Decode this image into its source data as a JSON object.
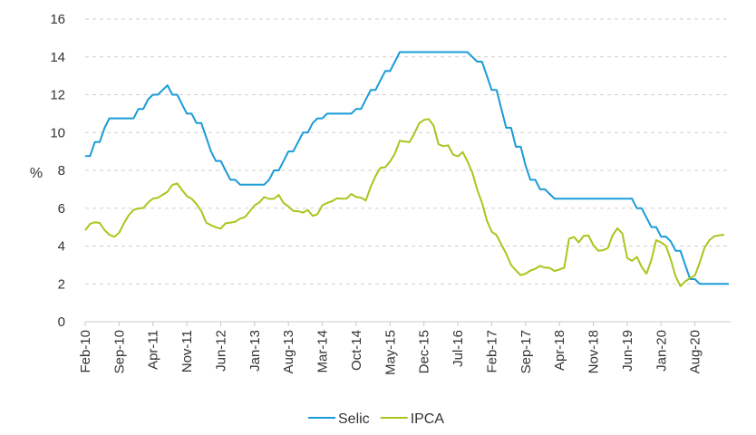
{
  "chart_data": {
    "type": "line",
    "ylabel": "%",
    "ylim": [
      0,
      16
    ],
    "yticks": [
      0,
      2,
      4,
      6,
      8,
      10,
      12,
      14,
      16
    ],
    "grid": "horizontal dashed",
    "legend_position": "bottom-center",
    "x_ticks": [
      "Feb-10",
      "Sep-10",
      "Apr-11",
      "Nov-11",
      "Jun-12",
      "Jan-13",
      "Aug-13",
      "Mar-14",
      "Oct-14",
      "May-15",
      "Dec-15",
      "Jul-16",
      "Feb-17",
      "Sep-17",
      "Apr-18",
      "Nov-18",
      "Jun-19",
      "Jan-20",
      "Aug-20"
    ],
    "series": [
      {
        "name": "Selic",
        "color": "#1a9bd7",
        "points": [
          [
            "Feb-10",
            8.75
          ],
          [
            "Mar-10",
            8.75
          ],
          [
            "Apr-10",
            9.5
          ],
          [
            "May-10",
            9.5
          ],
          [
            "Jun-10",
            10.25
          ],
          [
            "Jul-10",
            10.75
          ],
          [
            "Aug-10",
            10.75
          ],
          [
            "Sep-10",
            10.75
          ],
          [
            "Oct-10",
            10.75
          ],
          [
            "Nov-10",
            10.75
          ],
          [
            "Dec-10",
            10.75
          ],
          [
            "Jan-11",
            11.25
          ],
          [
            "Feb-11",
            11.25
          ],
          [
            "Mar-11",
            11.75
          ],
          [
            "Apr-11",
            12.0
          ],
          [
            "May-11",
            12.0
          ],
          [
            "Jun-11",
            12.25
          ],
          [
            "Jul-11",
            12.5
          ],
          [
            "Aug-11",
            12.0
          ],
          [
            "Sep-11",
            12.0
          ],
          [
            "Oct-11",
            11.5
          ],
          [
            "Nov-11",
            11.0
          ],
          [
            "Dec-11",
            11.0
          ],
          [
            "Jan-12",
            10.5
          ],
          [
            "Feb-12",
            10.5
          ],
          [
            "Mar-12",
            9.75
          ],
          [
            "Apr-12",
            9.0
          ],
          [
            "May-12",
            8.5
          ],
          [
            "Jun-12",
            8.5
          ],
          [
            "Jul-12",
            8.0
          ],
          [
            "Aug-12",
            7.5
          ],
          [
            "Sep-12",
            7.5
          ],
          [
            "Oct-12",
            7.25
          ],
          [
            "Nov-12",
            7.25
          ],
          [
            "Dec-12",
            7.25
          ],
          [
            "Jan-13",
            7.25
          ],
          [
            "Feb-13",
            7.25
          ],
          [
            "Mar-13",
            7.25
          ],
          [
            "Apr-13",
            7.5
          ],
          [
            "May-13",
            8.0
          ],
          [
            "Jun-13",
            8.0
          ],
          [
            "Jul-13",
            8.5
          ],
          [
            "Aug-13",
            9.0
          ],
          [
            "Sep-13",
            9.0
          ],
          [
            "Oct-13",
            9.5
          ],
          [
            "Nov-13",
            10.0
          ],
          [
            "Dec-13",
            10.0
          ],
          [
            "Jan-14",
            10.5
          ],
          [
            "Feb-14",
            10.75
          ],
          [
            "Mar-14",
            10.75
          ],
          [
            "Apr-14",
            11.0
          ],
          [
            "May-14",
            11.0
          ],
          [
            "Jun-14",
            11.0
          ],
          [
            "Jul-14",
            11.0
          ],
          [
            "Aug-14",
            11.0
          ],
          [
            "Sep-14",
            11.0
          ],
          [
            "Oct-14",
            11.25
          ],
          [
            "Nov-14",
            11.25
          ],
          [
            "Dec-14",
            11.75
          ],
          [
            "Jan-15",
            12.25
          ],
          [
            "Feb-15",
            12.25
          ],
          [
            "Mar-15",
            12.75
          ],
          [
            "Apr-15",
            13.25
          ],
          [
            "May-15",
            13.25
          ],
          [
            "Jun-15",
            13.75
          ],
          [
            "Jul-15",
            14.25
          ],
          [
            "Aug-15",
            14.25
          ],
          [
            "Sep-15",
            14.25
          ],
          [
            "Oct-15",
            14.25
          ],
          [
            "Nov-15",
            14.25
          ],
          [
            "Dec-15",
            14.25
          ],
          [
            "Jan-16",
            14.25
          ],
          [
            "Feb-16",
            14.25
          ],
          [
            "Mar-16",
            14.25
          ],
          [
            "Apr-16",
            14.25
          ],
          [
            "May-16",
            14.25
          ],
          [
            "Jun-16",
            14.25
          ],
          [
            "Jul-16",
            14.25
          ],
          [
            "Aug-16",
            14.25
          ],
          [
            "Sep-16",
            14.25
          ],
          [
            "Oct-16",
            14.0
          ],
          [
            "Nov-16",
            13.75
          ],
          [
            "Dec-16",
            13.75
          ],
          [
            "Jan-17",
            13.0
          ],
          [
            "Feb-17",
            12.25
          ],
          [
            "Mar-17",
            12.25
          ],
          [
            "Apr-17",
            11.25
          ],
          [
            "May-17",
            10.25
          ],
          [
            "Jun-17",
            10.25
          ],
          [
            "Jul-17",
            9.25
          ],
          [
            "Aug-17",
            9.25
          ],
          [
            "Sep-17",
            8.25
          ],
          [
            "Oct-17",
            7.5
          ],
          [
            "Nov-17",
            7.5
          ],
          [
            "Dec-17",
            7.0
          ],
          [
            "Jan-18",
            7.0
          ],
          [
            "Feb-18",
            6.75
          ],
          [
            "Mar-18",
            6.5
          ],
          [
            "Apr-18",
            6.5
          ],
          [
            "May-18",
            6.5
          ],
          [
            "Jun-18",
            6.5
          ],
          [
            "Jul-18",
            6.5
          ],
          [
            "Aug-18",
            6.5
          ],
          [
            "Sep-18",
            6.5
          ],
          [
            "Oct-18",
            6.5
          ],
          [
            "Nov-18",
            6.5
          ],
          [
            "Dec-18",
            6.5
          ],
          [
            "Jan-19",
            6.5
          ],
          [
            "Feb-19",
            6.5
          ],
          [
            "Mar-19",
            6.5
          ],
          [
            "Apr-19",
            6.5
          ],
          [
            "May-19",
            6.5
          ],
          [
            "Jun-19",
            6.5
          ],
          [
            "Jul-19",
            6.5
          ],
          [
            "Aug-19",
            6.0
          ],
          [
            "Sep-19",
            6.0
          ],
          [
            "Oct-19",
            5.5
          ],
          [
            "Nov-19",
            5.0
          ],
          [
            "Dec-19",
            5.0
          ],
          [
            "Jan-20",
            4.5
          ],
          [
            "Feb-20",
            4.5
          ],
          [
            "Mar-20",
            4.25
          ],
          [
            "Apr-20",
            3.75
          ],
          [
            "May-20",
            3.75
          ],
          [
            "Jun-20",
            3.0
          ],
          [
            "Jul-20",
            2.25
          ],
          [
            "Aug-20",
            2.25
          ],
          [
            "Sep-20",
            2.0
          ],
          [
            "Oct-20",
            2.0
          ],
          [
            "Nov-20",
            2.0
          ],
          [
            "Dec-20",
            2.0
          ],
          [
            "Jan-21",
            2.0
          ],
          [
            "Feb-21",
            2.0
          ],
          [
            "Mar-21",
            2.0
          ]
        ]
      },
      {
        "name": "IPCA",
        "color": "#aac51c",
        "points": [
          [
            "Feb-10",
            4.83
          ],
          [
            "Mar-10",
            5.17
          ],
          [
            "Apr-10",
            5.26
          ],
          [
            "May-10",
            5.22
          ],
          [
            "Jun-10",
            4.84
          ],
          [
            "Jul-10",
            4.6
          ],
          [
            "Aug-10",
            4.49
          ],
          [
            "Sep-10",
            4.7
          ],
          [
            "Oct-10",
            5.2
          ],
          [
            "Nov-10",
            5.63
          ],
          [
            "Dec-10",
            5.91
          ],
          [
            "Jan-11",
            5.99
          ],
          [
            "Feb-11",
            6.01
          ],
          [
            "Mar-11",
            6.3
          ],
          [
            "Apr-11",
            6.51
          ],
          [
            "May-11",
            6.55
          ],
          [
            "Jun-11",
            6.71
          ],
          [
            "Jul-11",
            6.87
          ],
          [
            "Aug-11",
            7.23
          ],
          [
            "Sep-11",
            7.31
          ],
          [
            "Oct-11",
            6.97
          ],
          [
            "Nov-11",
            6.64
          ],
          [
            "Dec-11",
            6.5
          ],
          [
            "Jan-12",
            6.22
          ],
          [
            "Feb-12",
            5.85
          ],
          [
            "Mar-12",
            5.24
          ],
          [
            "Apr-12",
            5.1
          ],
          [
            "May-12",
            4.99
          ],
          [
            "Jun-12",
            4.92
          ],
          [
            "Jul-12",
            5.2
          ],
          [
            "Aug-12",
            5.24
          ],
          [
            "Sep-12",
            5.28
          ],
          [
            "Oct-12",
            5.45
          ],
          [
            "Nov-12",
            5.53
          ],
          [
            "Dec-12",
            5.84
          ],
          [
            "Jan-13",
            6.15
          ],
          [
            "Feb-13",
            6.31
          ],
          [
            "Mar-13",
            6.59
          ],
          [
            "Apr-13",
            6.49
          ],
          [
            "May-13",
            6.5
          ],
          [
            "Jun-13",
            6.7
          ],
          [
            "Jul-13",
            6.27
          ],
          [
            "Aug-13",
            6.09
          ],
          [
            "Sep-13",
            5.86
          ],
          [
            "Oct-13",
            5.84
          ],
          [
            "Nov-13",
            5.77
          ],
          [
            "Dec-13",
            5.91
          ],
          [
            "Jan-14",
            5.59
          ],
          [
            "Feb-14",
            5.68
          ],
          [
            "Mar-14",
            6.15
          ],
          [
            "Apr-14",
            6.28
          ],
          [
            "May-14",
            6.37
          ],
          [
            "Jun-14",
            6.52
          ],
          [
            "Jul-14",
            6.5
          ],
          [
            "Aug-14",
            6.51
          ],
          [
            "Sep-14",
            6.75
          ],
          [
            "Oct-14",
            6.59
          ],
          [
            "Nov-14",
            6.56
          ],
          [
            "Dec-14",
            6.41
          ],
          [
            "Jan-15",
            7.14
          ],
          [
            "Feb-15",
            7.7
          ],
          [
            "Mar-15",
            8.13
          ],
          [
            "Apr-15",
            8.17
          ],
          [
            "May-15",
            8.47
          ],
          [
            "Jun-15",
            8.89
          ],
          [
            "Jul-15",
            9.56
          ],
          [
            "Aug-15",
            9.53
          ],
          [
            "Sep-15",
            9.49
          ],
          [
            "Oct-15",
            9.93
          ],
          [
            "Nov-15",
            10.48
          ],
          [
            "Dec-15",
            10.67
          ],
          [
            "Jan-16",
            10.71
          ],
          [
            "Feb-16",
            10.36
          ],
          [
            "Mar-16",
            9.39
          ],
          [
            "Apr-16",
            9.28
          ],
          [
            "May-16",
            9.32
          ],
          [
            "Jun-16",
            8.84
          ],
          [
            "Jul-16",
            8.74
          ],
          [
            "Aug-16",
            8.97
          ],
          [
            "Sep-16",
            8.48
          ],
          [
            "Oct-16",
            7.87
          ],
          [
            "Nov-16",
            6.99
          ],
          [
            "Dec-16",
            6.29
          ],
          [
            "Jan-17",
            5.35
          ],
          [
            "Feb-17",
            4.76
          ],
          [
            "Mar-17",
            4.57
          ],
          [
            "Apr-17",
            4.08
          ],
          [
            "May-17",
            3.6
          ],
          [
            "Jun-17",
            3.0
          ],
          [
            "Jul-17",
            2.71
          ],
          [
            "Aug-17",
            2.46
          ],
          [
            "Sep-17",
            2.54
          ],
          [
            "Oct-17",
            2.7
          ],
          [
            "Nov-17",
            2.8
          ],
          [
            "Dec-17",
            2.95
          ],
          [
            "Jan-18",
            2.86
          ],
          [
            "Feb-18",
            2.84
          ],
          [
            "Mar-18",
            2.68
          ],
          [
            "Apr-18",
            2.76
          ],
          [
            "May-18",
            2.86
          ],
          [
            "Jun-18",
            4.39
          ],
          [
            "Jul-18",
            4.48
          ],
          [
            "Aug-18",
            4.19
          ],
          [
            "Sep-18",
            4.53
          ],
          [
            "Oct-18",
            4.56
          ],
          [
            "Nov-18",
            4.05
          ],
          [
            "Dec-18",
            3.75
          ],
          [
            "Jan-19",
            3.78
          ],
          [
            "Feb-19",
            3.89
          ],
          [
            "Mar-19",
            4.58
          ],
          [
            "Apr-19",
            4.94
          ],
          [
            "May-19",
            4.66
          ],
          [
            "Jun-19",
            3.37
          ],
          [
            "Jul-19",
            3.22
          ],
          [
            "Aug-19",
            3.43
          ],
          [
            "Sep-19",
            2.89
          ],
          [
            "Oct-19",
            2.54
          ],
          [
            "Nov-19",
            3.27
          ],
          [
            "Dec-19",
            4.31
          ],
          [
            "Jan-20",
            4.19
          ],
          [
            "Feb-20",
            4.01
          ],
          [
            "Mar-20",
            3.3
          ],
          [
            "Apr-20",
            2.4
          ],
          [
            "May-20",
            1.88
          ],
          [
            "Jun-20",
            2.13
          ],
          [
            "Jul-20",
            2.31
          ],
          [
            "Aug-20",
            2.44
          ],
          [
            "Sep-20",
            3.14
          ],
          [
            "Oct-20",
            3.92
          ],
          [
            "Nov-20",
            4.31
          ],
          [
            "Dec-20",
            4.52
          ],
          [
            "Jan-21",
            4.56
          ],
          [
            "Feb-21",
            4.6
          ]
        ]
      }
    ]
  }
}
